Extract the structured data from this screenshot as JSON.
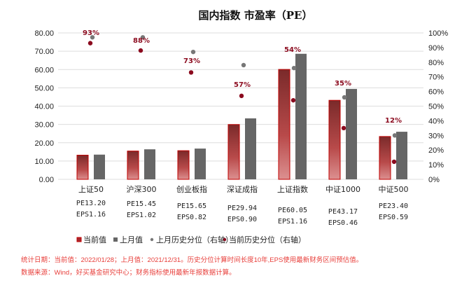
{
  "chart_data": {
    "type": "bar",
    "title": "国内指数 市盈率（PE）",
    "categories": [
      "上证50",
      "沪深300",
      "创业板指",
      "深证成指",
      "上证指数",
      "中证1000",
      "中证500"
    ],
    "left_axis": {
      "ylim": [
        0,
        80
      ],
      "ticks": [
        "0.00",
        "10.00",
        "20.00",
        "30.00",
        "40.00",
        "50.00",
        "60.00",
        "70.00",
        "80.00"
      ]
    },
    "right_axis": {
      "ylim": [
        0,
        100
      ],
      "ticks": [
        "0%",
        "10%",
        "20%",
        "30%",
        "40%",
        "50%",
        "60%",
        "70%",
        "80%",
        "90%",
        "100%"
      ]
    },
    "grid": true,
    "series": [
      {
        "name": "当前值",
        "kind": "bar",
        "axis": "left",
        "color": "#a8282e",
        "values": [
          13.2,
          15.45,
          15.65,
          29.94,
          60.05,
          43.17,
          23.4
        ]
      },
      {
        "name": "上月值",
        "kind": "bar",
        "axis": "left",
        "color": "#666666",
        "values": [
          13.5,
          16.4,
          16.8,
          33.3,
          68.6,
          49.4,
          26.0
        ]
      },
      {
        "name": "上月历史分位（右轴）",
        "kind": "scatter",
        "axis": "right",
        "color": "#777777",
        "values": [
          97,
          97,
          87,
          78,
          76,
          56,
          30
        ]
      },
      {
        "name": "当前历史分位（右轴）",
        "kind": "scatter",
        "axis": "right",
        "color": "#8b0a1e",
        "values": [
          93,
          88,
          73,
          57,
          54,
          35,
          12
        ]
      }
    ],
    "data_labels": [
      "93%",
      "88%",
      "73%",
      "57%",
      "54%",
      "35%",
      "12%"
    ],
    "pe_labels": [
      "PE13.20",
      "PE15.45",
      "PE15.65",
      "PE29.94",
      "PE60.05",
      "PE43.17",
      "PE23.40"
    ],
    "eps_labels": [
      "EPS1.16",
      "EPS1.02",
      "EPS0.82",
      "EPS0.90",
      "EPS1.16",
      "EPS0.46",
      "EPS0.59"
    ],
    "legend_position": "bottom"
  },
  "notes": {
    "line1": "统计日期：当前值：2022/01/28；上月值：2021/12/31。历史分位计算时间长度10年,EPS使用最新财务区间预估值。",
    "line2": "数据来源：Wind，好买基金研究中心；财务指标使用最新年报数据计算。"
  }
}
